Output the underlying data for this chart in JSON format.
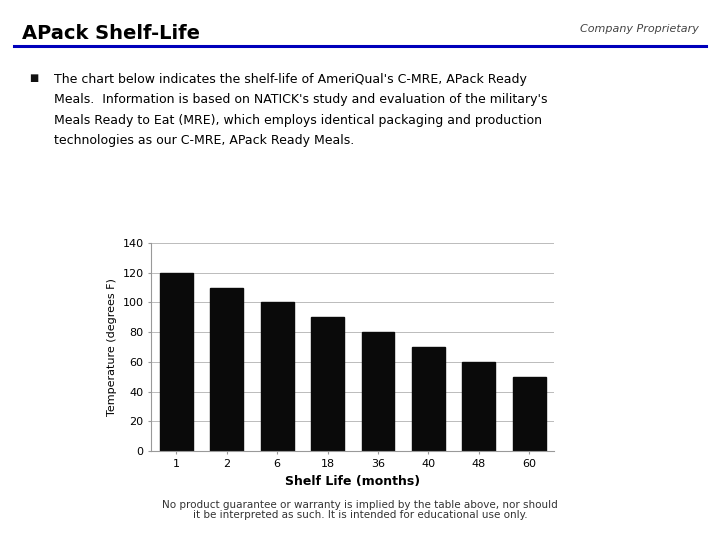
{
  "title": "APack Shelf-Life",
  "title_fontsize": 14,
  "title_color": "#000000",
  "company_label": "Company Proprietary",
  "company_fontsize": 8,
  "header_line_color": "#0000BB",
  "bullet_text_line1": "The chart below indicates the shelf-life of AmeriQual's C-MRE, APack Ready",
  "bullet_text_line2": "Meals.  Information is based on NATICK's study and evaluation of the military's",
  "bullet_text_line3": "Meals Ready to Eat (MRE), which employs identical packaging and production",
  "bullet_text_line4": "technologies as our C-MRE, APack Ready Meals.",
  "bullet_fontsize": 9,
  "categories": [
    "1",
    "2",
    "6",
    "18",
    "36",
    "40",
    "48",
    "60"
  ],
  "values": [
    120,
    110,
    100,
    90,
    80,
    70,
    60,
    50
  ],
  "bar_color": "#0a0a0a",
  "xlabel": "Shelf Life (months)",
  "ylabel": "Temperature (degrees F)",
  "xlabel_fontsize": 9,
  "ylabel_fontsize": 8,
  "ylim": [
    0,
    140
  ],
  "yticks": [
    0,
    20,
    40,
    60,
    80,
    100,
    120,
    140
  ],
  "grid_color": "#bbbbbb",
  "axis_bg": "#ffffff",
  "footnote_line1": "No product guarantee or warranty is implied by the table above, nor should",
  "footnote_line2": "it be interpreted as such. It is intended for educational use only.",
  "footnote_fontsize": 7.5,
  "background_color": "#ffffff"
}
